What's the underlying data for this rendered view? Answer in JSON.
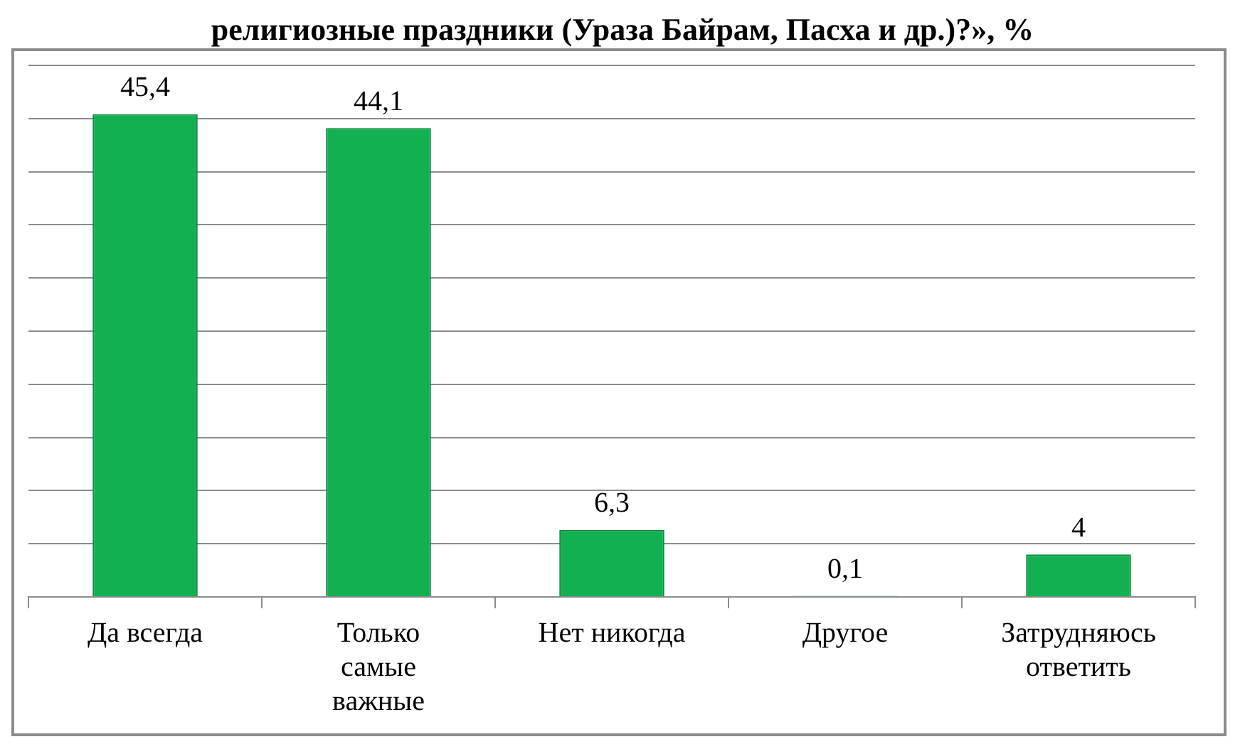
{
  "chart_data": {
    "type": "bar",
    "title": "религиозные праздники (Ураза Байрам, Пасха и др.)?», %",
    "categories": [
      "Да всегда",
      "Только самые важные",
      "Нет никогда",
      "Другое",
      "Затрудняюсь ответить"
    ],
    "values": [
      45.4,
      44.1,
      6.3,
      0.1,
      4
    ],
    "color": "#12b050",
    "ylim": [
      0,
      50
    ],
    "yticks": [
      {
        "value": 0,
        "label": null
      },
      {
        "value": 5,
        "label": null
      },
      {
        "value": 10,
        "label": null
      },
      {
        "value": 15,
        "label": null
      },
      {
        "value": 20,
        "label": null
      },
      {
        "value": 25,
        "label": null
      },
      {
        "value": 30,
        "label": null
      },
      {
        "value": 35,
        "label": null
      },
      {
        "value": 40,
        "label": null
      },
      {
        "value": 45,
        "label": null
      },
      {
        "value": 50,
        "label": null
      }
    ],
    "value_labels": [
      "45,4",
      "44,1",
      "6,3",
      "0,1",
      "4"
    ],
    "grid": "y",
    "legend": false
  }
}
